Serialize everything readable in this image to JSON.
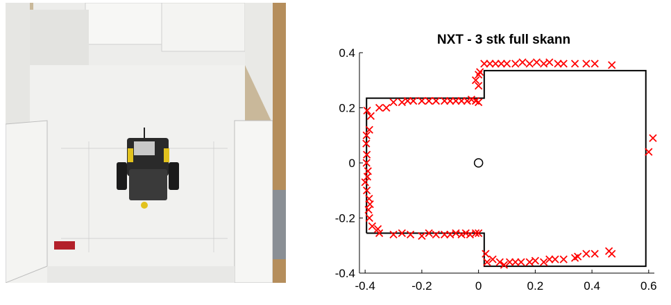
{
  "photo": {
    "description_icon": "robot-arena-photo"
  },
  "chart_data": {
    "type": "scatter",
    "title": "NXT - 3 stk full skann",
    "xlabel": "",
    "ylabel": "",
    "xlim": [
      -0.42,
      0.62
    ],
    "ylim": [
      -0.4,
      0.4
    ],
    "x_ticks": [
      "-0.4",
      "-0.2",
      "0",
      "0.2",
      "0.4",
      "0.6"
    ],
    "x_tick_values": [
      -0.4,
      -0.2,
      0,
      0.2,
      0.4,
      0.6
    ],
    "y_ticks": [
      "0.4",
      "0.2",
      "0",
      "-0.2",
      "-0.4"
    ],
    "y_tick_values": [
      0.4,
      0.2,
      0,
      -0.2,
      -0.4
    ],
    "colors": {
      "scan_points": "#ff0000",
      "outline": "#000000",
      "origin": "#000000"
    },
    "outline": {
      "x": [
        -0.395,
        0.02,
        0.02,
        0.59,
        0.59,
        0.02,
        0.02,
        -0.395,
        -0.395
      ],
      "y": [
        -0.255,
        -0.255,
        -0.375,
        -0.375,
        0.335,
        0.335,
        0.235,
        0.235,
        -0.255
      ]
    },
    "origin": {
      "x": 0,
      "y": 0
    },
    "scan_points": {
      "x": [
        -0.393,
        -0.38,
        -0.385,
        -0.395,
        -0.396,
        -0.394,
        -0.395,
        -0.39,
        -0.392,
        -0.4,
        -0.394,
        -0.386,
        -0.383,
        -0.388,
        -0.385,
        -0.375,
        -0.355,
        -0.35,
        -0.325,
        -0.3,
        -0.27,
        -0.25,
        -0.23,
        -0.2,
        -0.175,
        -0.15,
        -0.12,
        -0.1,
        -0.08,
        -0.06,
        -0.04,
        -0.025,
        -0.01,
        0.0,
        -0.01,
        0.0,
        0.0,
        0.005,
        0.02,
        0.04,
        0.06,
        0.08,
        0.1,
        0.13,
        0.155,
        0.18,
        0.205,
        0.23,
        0.25,
        0.28,
        0.3,
        0.34,
        0.38,
        0.41,
        0.47,
        0.615,
        0.6,
        -0.35,
        -0.3,
        -0.27,
        -0.24,
        -0.2,
        -0.175,
        -0.15,
        -0.12,
        -0.1,
        -0.08,
        -0.06,
        -0.045,
        -0.03,
        -0.01,
        0.0,
        0.025,
        0.03,
        0.05,
        0.075,
        0.09,
        0.11,
        0.13,
        0.15,
        0.18,
        0.2,
        0.23,
        0.25,
        0.27,
        0.3,
        0.34,
        0.35,
        0.38,
        0.41,
        0.46,
        0.47
      ],
      "y": [
        0.19,
        0.17,
        0.12,
        0.1,
        0.07,
        0.03,
        0.0,
        -0.03,
        -0.05,
        -0.07,
        -0.1,
        -0.13,
        -0.15,
        -0.17,
        -0.2,
        -0.23,
        -0.24,
        0.2,
        0.2,
        0.22,
        0.22,
        0.225,
        0.225,
        0.225,
        0.225,
        0.225,
        0.225,
        0.225,
        0.225,
        0.225,
        0.225,
        0.23,
        0.225,
        0.22,
        0.3,
        0.32,
        0.28,
        0.33,
        0.36,
        0.36,
        0.36,
        0.36,
        0.36,
        0.36,
        0.365,
        0.36,
        0.365,
        0.36,
        0.365,
        0.36,
        0.36,
        0.36,
        0.36,
        0.36,
        0.355,
        0.09,
        0.04,
        -0.255,
        -0.26,
        -0.255,
        -0.26,
        -0.265,
        -0.255,
        -0.26,
        -0.26,
        -0.26,
        -0.255,
        -0.26,
        -0.255,
        -0.26,
        -0.255,
        -0.255,
        -0.33,
        -0.36,
        -0.35,
        -0.36,
        -0.37,
        -0.36,
        -0.36,
        -0.36,
        -0.36,
        -0.355,
        -0.36,
        -0.35,
        -0.35,
        -0.35,
        -0.345,
        -0.34,
        -0.33,
        -0.33,
        -0.32,
        -0.33
      ]
    }
  }
}
